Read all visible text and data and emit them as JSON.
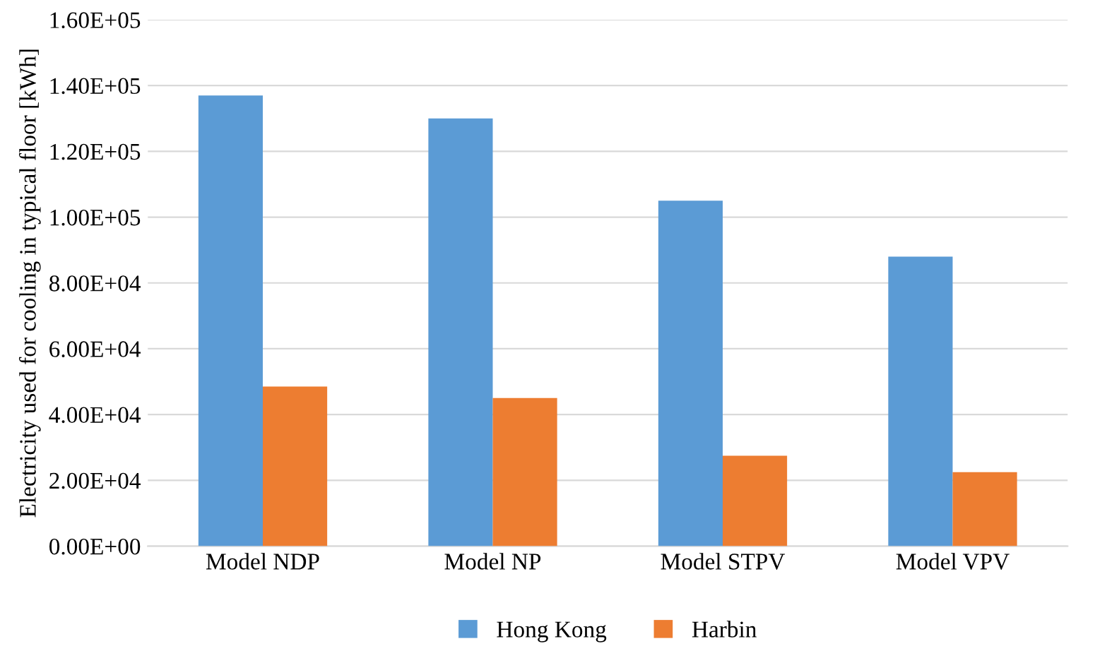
{
  "chart_data": {
    "type": "bar",
    "ylabel": "Electricity used for cooling in typical floor [kWh]",
    "categories": [
      "Model NDP",
      "Model NP",
      "Model STPV",
      "Model VPV"
    ],
    "series": [
      {
        "name": "Hong Kong",
        "color": "#5b9bd5",
        "values": [
          137000,
          130000,
          105000,
          88000
        ]
      },
      {
        "name": "Harbin",
        "color": "#ed7d31",
        "values": [
          48500,
          45000,
          27500,
          22500
        ]
      }
    ],
    "ylim": [
      0,
      160000
    ],
    "yticks": [
      {
        "value": 0,
        "label": "0.00E+00"
      },
      {
        "value": 20000,
        "label": "2.00E+04"
      },
      {
        "value": 40000,
        "label": "4.00E+04"
      },
      {
        "value": 60000,
        "label": "6.00E+04"
      },
      {
        "value": 80000,
        "label": "8.00E+04"
      },
      {
        "value": 100000,
        "label": "1.00E+05"
      },
      {
        "value": 120000,
        "label": "1.20E+05"
      },
      {
        "value": 140000,
        "label": "1.40E+05"
      },
      {
        "value": 160000,
        "label": "1.60E+05"
      }
    ],
    "grid": "y",
    "legend": "bottom"
  }
}
